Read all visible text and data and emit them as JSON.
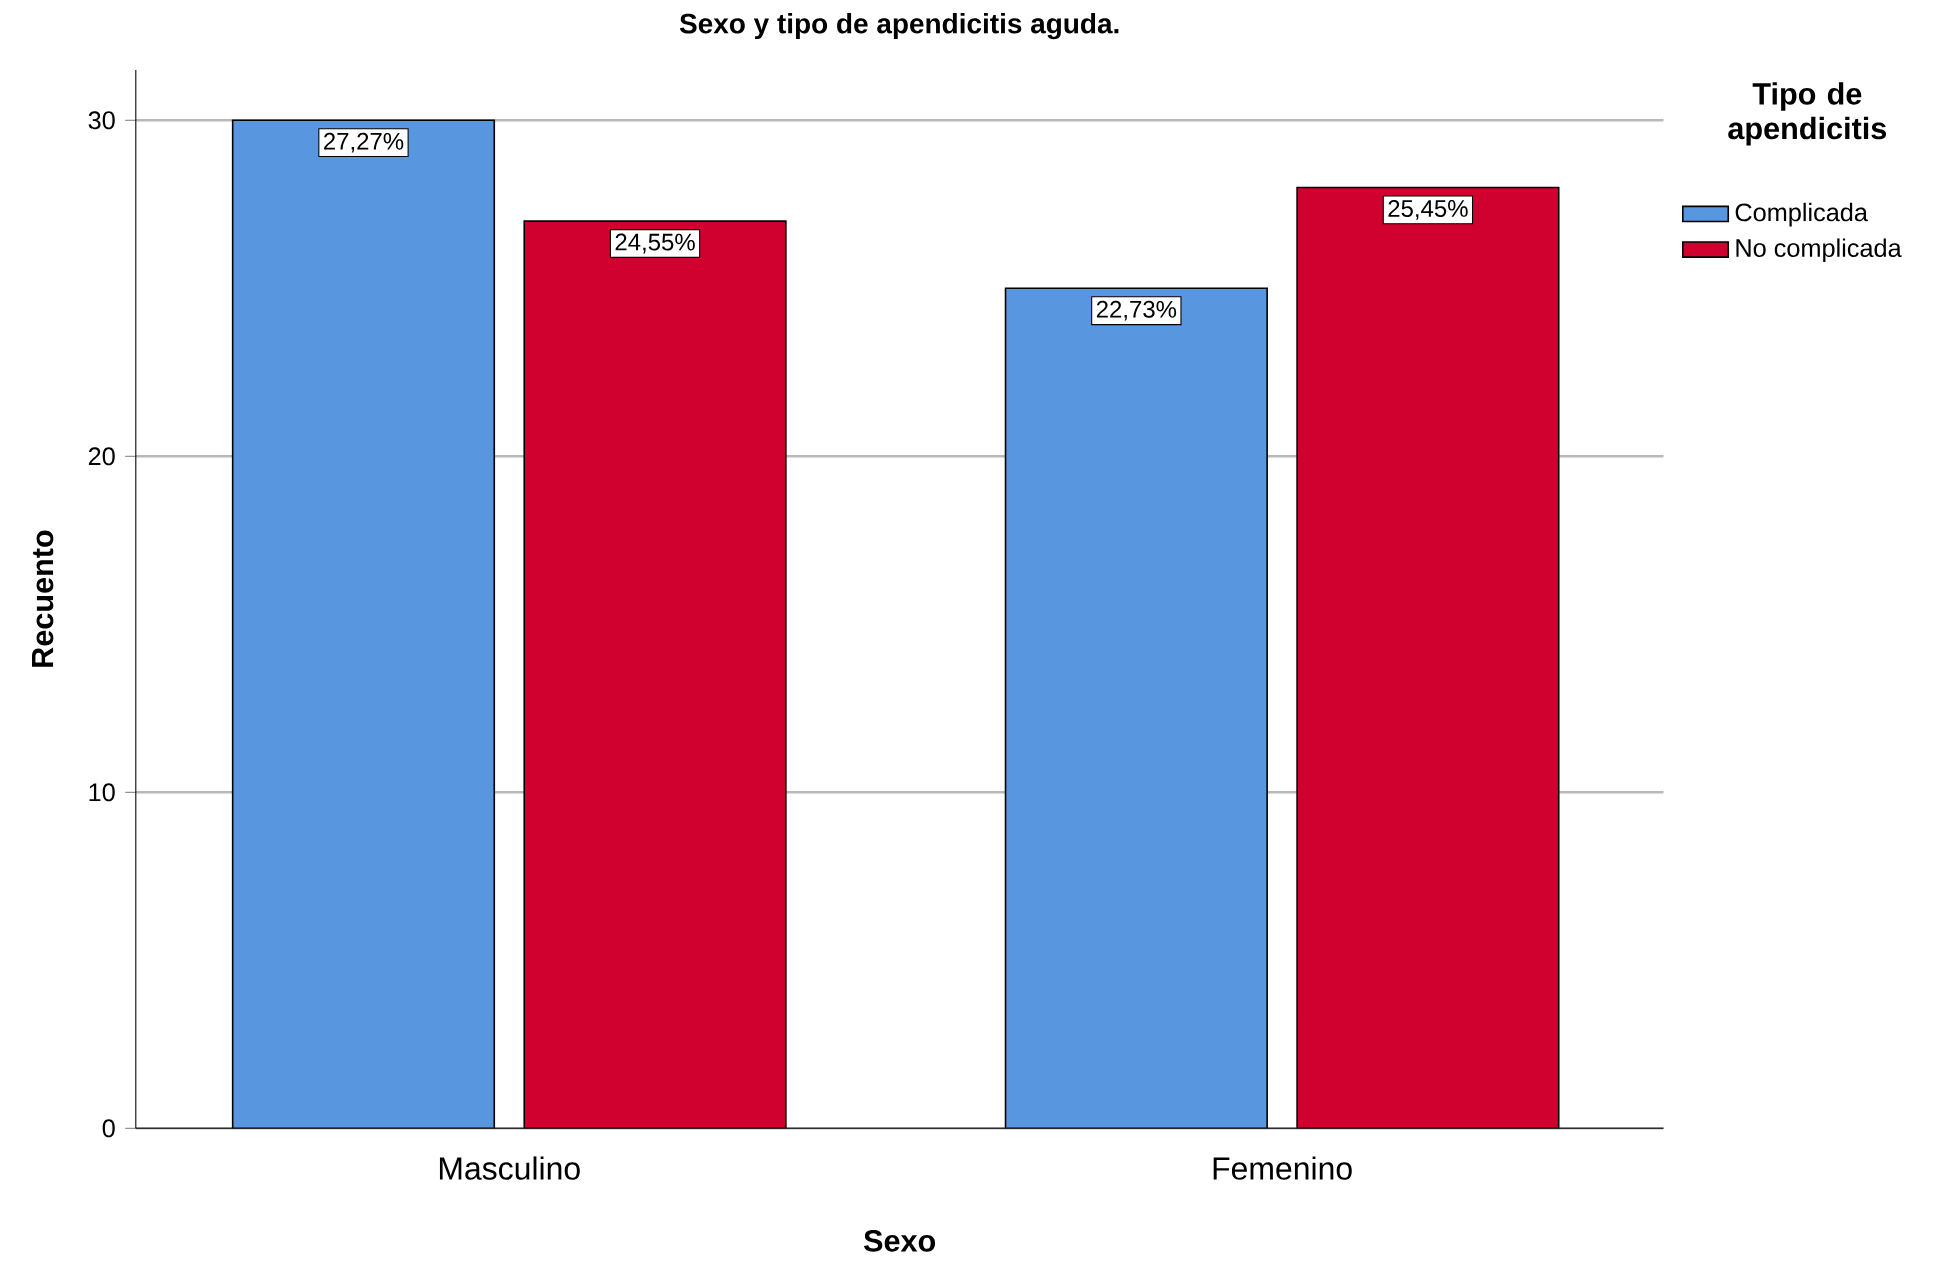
{
  "chart_data": {
    "type": "bar",
    "title": "Sexo y tipo de apendicitis aguda.",
    "xlabel": "Sexo",
    "ylabel": "Recuento",
    "legend_title": "Tipo de apendicitis",
    "categories": [
      "Masculino",
      "Femenino"
    ],
    "series": [
      {
        "name": "Complicada",
        "color": "#5896e0",
        "values": [
          30,
          25
        ]
      },
      {
        "name": "No complicada",
        "color": "#d0002f",
        "values": [
          27,
          28
        ]
      }
    ],
    "annotations": [
      "27,27%",
      "24,55%",
      "22,73%",
      "25,45%"
    ],
    "ylim": [
      0,
      31.5
    ],
    "yticks": [
      0,
      10,
      20,
      30
    ],
    "grid": "y",
    "legend": "right"
  }
}
